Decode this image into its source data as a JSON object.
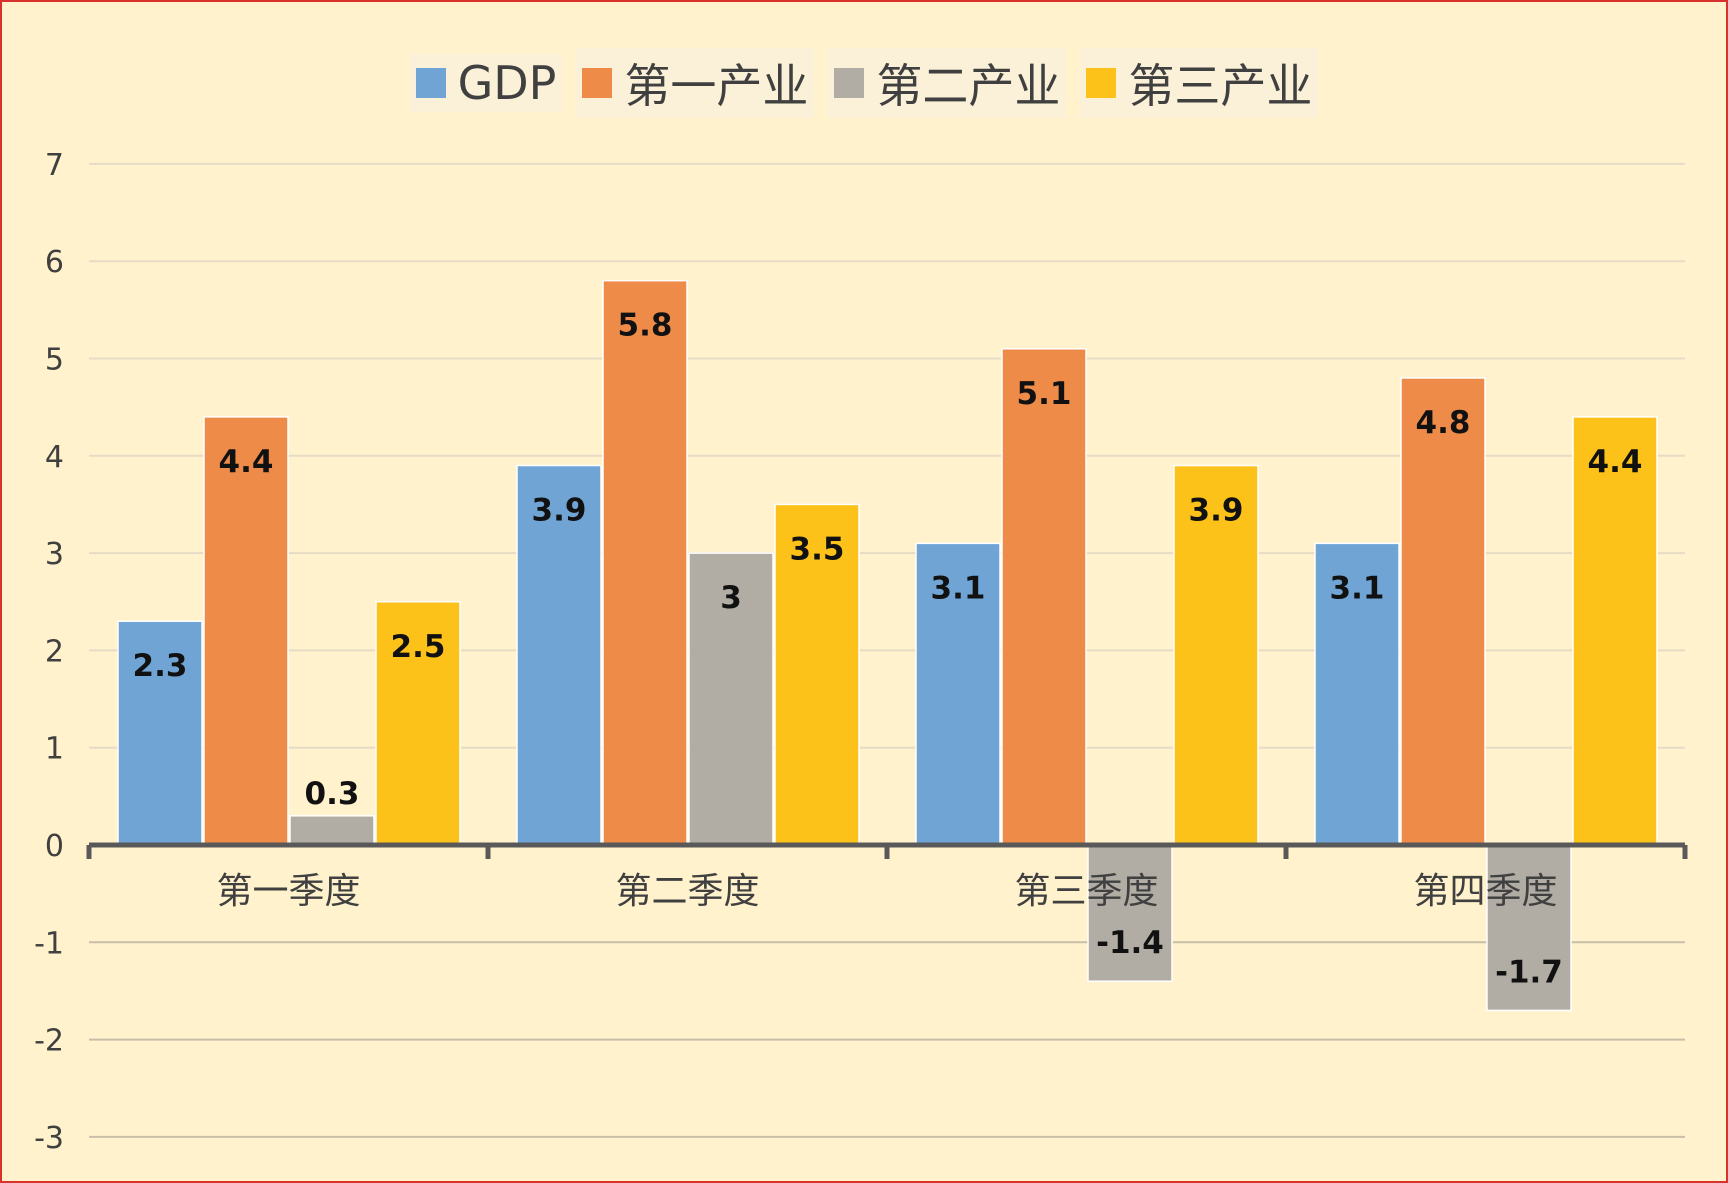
{
  "chart_data": {
    "type": "bar",
    "categories": [
      "第一季度",
      "第二季度",
      "第三季度",
      "第四季度"
    ],
    "series": [
      {
        "name": "GDP",
        "values": [
          2.3,
          3.9,
          3.1,
          3.1
        ],
        "color": "#6fa4d5"
      },
      {
        "name": "第一产业",
        "values": [
          4.4,
          5.8,
          5.1,
          4.8
        ],
        "color": "#ee8b49"
      },
      {
        "name": "第二产业",
        "values": [
          0.3,
          3,
          -1.4,
          -1.7
        ],
        "color": "#b1ada4"
      },
      {
        "name": "第三产业",
        "values": [
          2.5,
          3.5,
          3.9,
          4.4
        ],
        "color": "#fcc21a"
      }
    ],
    "data_labels": [
      [
        "2.3",
        "3.9",
        "3.1",
        "3.1"
      ],
      [
        "4.4",
        "5.8",
        "5.1",
        "4.8"
      ],
      [
        "0.3",
        "3",
        "-1.4",
        "-1.7"
      ],
      [
        "2.5",
        "3.5",
        "3.9",
        "4.4"
      ]
    ],
    "y_ticks": [
      "-3",
      "-2",
      "-1",
      "0",
      "1",
      "2",
      "3",
      "4",
      "5",
      "6",
      "7"
    ],
    "ylim": [
      -3,
      7
    ],
    "grid": true,
    "legend_position": "top-center",
    "background_color": "#fff2cc",
    "border_color": "#d9312b"
  }
}
